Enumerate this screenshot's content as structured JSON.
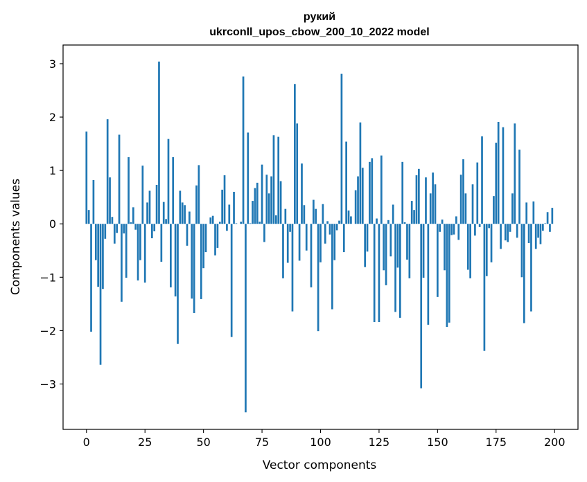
{
  "chart_data": {
    "type": "bar",
    "title_line1": "рукий",
    "title_line2": "ukrconll_upos_cbow_200_10_2022 model",
    "xlabel": "Vector components",
    "ylabel": "Components values",
    "xlim": [
      -10,
      210
    ],
    "ylim": [
      -3.85,
      3.35
    ],
    "xticks": [
      0,
      25,
      50,
      75,
      100,
      125,
      150,
      175,
      200
    ],
    "xtick_labels": [
      "0",
      "25",
      "50",
      "75",
      "100",
      "125",
      "150",
      "175",
      "200"
    ],
    "yticks": [
      -3,
      -2,
      -1,
      0,
      1,
      2,
      3
    ],
    "ytick_labels": [
      "−3",
      "−2",
      "−1",
      "0",
      "1",
      "2",
      "3"
    ],
    "bar_color": "#1f77b4",
    "grid": false,
    "values": [
      1.73,
      0.26,
      -2.02,
      0.82,
      -0.68,
      -1.18,
      -2.64,
      -1.22,
      -0.28,
      1.96,
      0.87,
      0.13,
      -0.37,
      -0.17,
      1.67,
      -1.46,
      -0.18,
      -1.01,
      1.25,
      0.03,
      0.31,
      -0.11,
      -1.06,
      -0.68,
      1.09,
      -1.1,
      0.4,
      0.62,
      -0.27,
      -0.14,
      0.73,
      3.04,
      -0.71,
      0.41,
      0.09,
      1.59,
      -1.19,
      1.25,
      -1.36,
      -2.25,
      0.62,
      0.4,
      0.35,
      -0.41,
      0.23,
      -1.4,
      -1.67,
      0.72,
      1.1,
      -1.41,
      -0.83,
      -0.53,
      0.0,
      0.12,
      0.15,
      -0.59,
      -0.45,
      0.04,
      0.64,
      0.91,
      -0.13,
      0.36,
      -2.12,
      0.6,
      0.01,
      0.0,
      0.04,
      2.76,
      -3.53,
      1.71,
      0.01,
      0.43,
      0.67,
      0.77,
      0.04,
      1.11,
      -0.34,
      0.92,
      0.57,
      0.89,
      1.66,
      0.16,
      1.63,
      0.8,
      -1.02,
      0.28,
      -0.73,
      -0.15,
      -1.64,
      2.62,
      1.88,
      -0.69,
      1.13,
      0.35,
      -0.5,
      0.0,
      -1.19,
      0.45,
      0.28,
      -2.01,
      -0.72,
      0.37,
      -0.37,
      0.05,
      -0.2,
      -1.6,
      -0.68,
      -0.12,
      0.06,
      2.81,
      -0.53,
      1.54,
      0.25,
      0.14,
      0.0,
      0.63,
      0.89,
      1.9,
      1.05,
      -0.81,
      -0.52,
      1.16,
      1.23,
      -1.84,
      0.1,
      -1.84,
      1.28,
      -0.87,
      -1.15,
      0.07,
      -0.61,
      0.36,
      -1.65,
      -0.82,
      -1.76,
      1.16,
      0.03,
      -0.67,
      -1.02,
      0.43,
      0.26,
      0.91,
      1.03,
      -3.08,
      -1.01,
      0.87,
      -1.89,
      0.57,
      0.96,
      0.74,
      -1.37,
      -0.15,
      0.08,
      -0.87,
      -1.93,
      -1.85,
      -0.21,
      -0.2,
      0.14,
      -0.3,
      0.92,
      1.21,
      0.57,
      -0.86,
      -1.02,
      0.74,
      -0.22,
      1.15,
      -0.06,
      1.64,
      -2.38,
      -0.98,
      -0.08,
      -0.72,
      0.52,
      1.52,
      1.91,
      -0.47,
      1.81,
      -0.31,
      -0.34,
      -0.15,
      0.57,
      1.88,
      -0.26,
      1.39,
      -1.0,
      -1.86,
      0.4,
      -0.36,
      -1.64,
      0.42,
      -0.47,
      -0.26,
      -0.38,
      -0.13,
      0.01,
      0.22,
      -0.15,
      0.3
    ]
  }
}
